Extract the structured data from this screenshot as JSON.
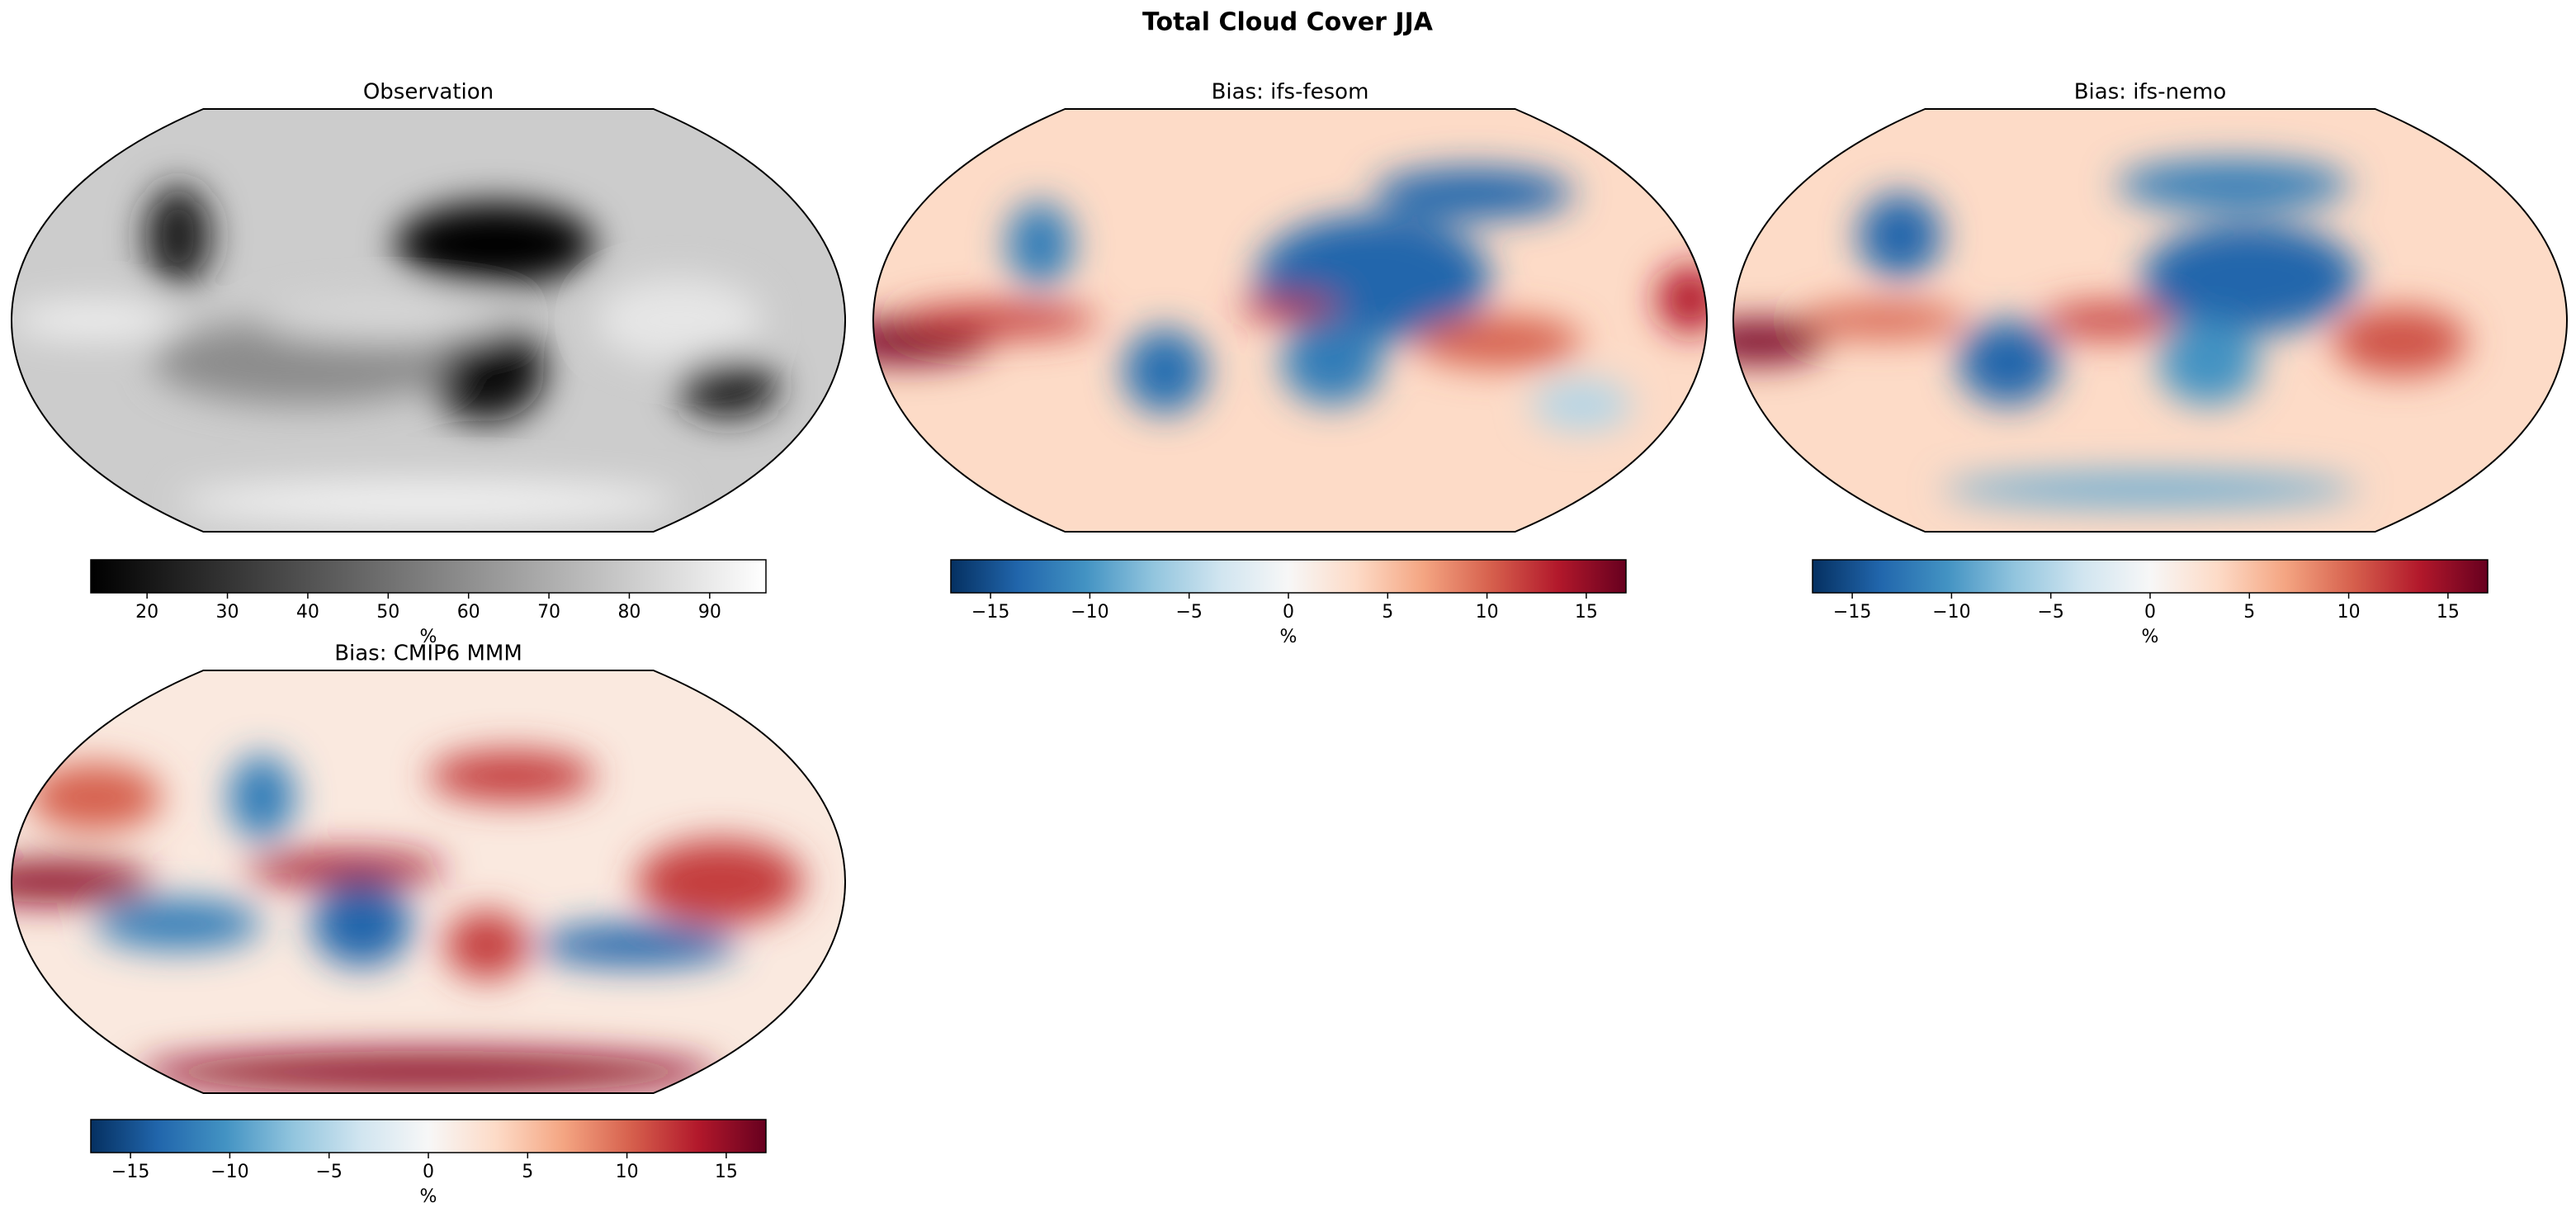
{
  "title": "Total Cloud Cover JJA",
  "chart_data": [
    {
      "type": "map",
      "title": "Observation",
      "colorbar": {
        "label": "%",
        "lim": [
          13,
          97
        ],
        "ticks": [
          20,
          30,
          40,
          50,
          60,
          70,
          80,
          90
        ],
        "colors": [
          "#000000",
          "#ffffff"
        ]
      }
    },
    {
      "type": "map",
      "title": "Bias: ifs-fesom",
      "colorbar": {
        "label": "%",
        "lim": [
          -17,
          17
        ],
        "ticks": [
          {
            "value": -15,
            "label": "−15"
          },
          {
            "value": -10,
            "label": "−10"
          },
          {
            "value": -5,
            "label": "−5"
          },
          0,
          5,
          10,
          15
        ],
        "colors": [
          "#053061",
          "#2166ac",
          "#4393c3",
          "#92c5de",
          "#d1e5f0",
          "#f7f7f7",
          "#fddbc7",
          "#f4a582",
          "#d6604d",
          "#b2182b",
          "#67001f"
        ]
      }
    },
    {
      "type": "map",
      "title": "Bias: ifs-nemo",
      "colorbar": {
        "label": "%",
        "lim": [
          -17,
          17
        ],
        "ticks": [
          {
            "value": -15,
            "label": "−15"
          },
          {
            "value": -10,
            "label": "−10"
          },
          {
            "value": -5,
            "label": "−5"
          },
          0,
          5,
          10,
          15
        ],
        "colors": [
          "#053061",
          "#2166ac",
          "#4393c3",
          "#92c5de",
          "#d1e5f0",
          "#f7f7f7",
          "#fddbc7",
          "#f4a582",
          "#d6604d",
          "#b2182b",
          "#67001f"
        ]
      }
    },
    {
      "type": "map",
      "title": "Bias: CMIP6 MMM",
      "colorbar": {
        "label": "%",
        "lim": [
          -17,
          17
        ],
        "ticks": [
          {
            "value": -15,
            "label": "−15"
          },
          {
            "value": -10,
            "label": "−10"
          },
          {
            "value": -5,
            "label": "−5"
          },
          0,
          5,
          10,
          15
        ],
        "colors": [
          "#053061",
          "#2166ac",
          "#4393c3",
          "#92c5de",
          "#d1e5f0",
          "#f7f7f7",
          "#fddbc7",
          "#f4a582",
          "#d6604d",
          "#b2182b",
          "#67001f"
        ]
      }
    }
  ]
}
